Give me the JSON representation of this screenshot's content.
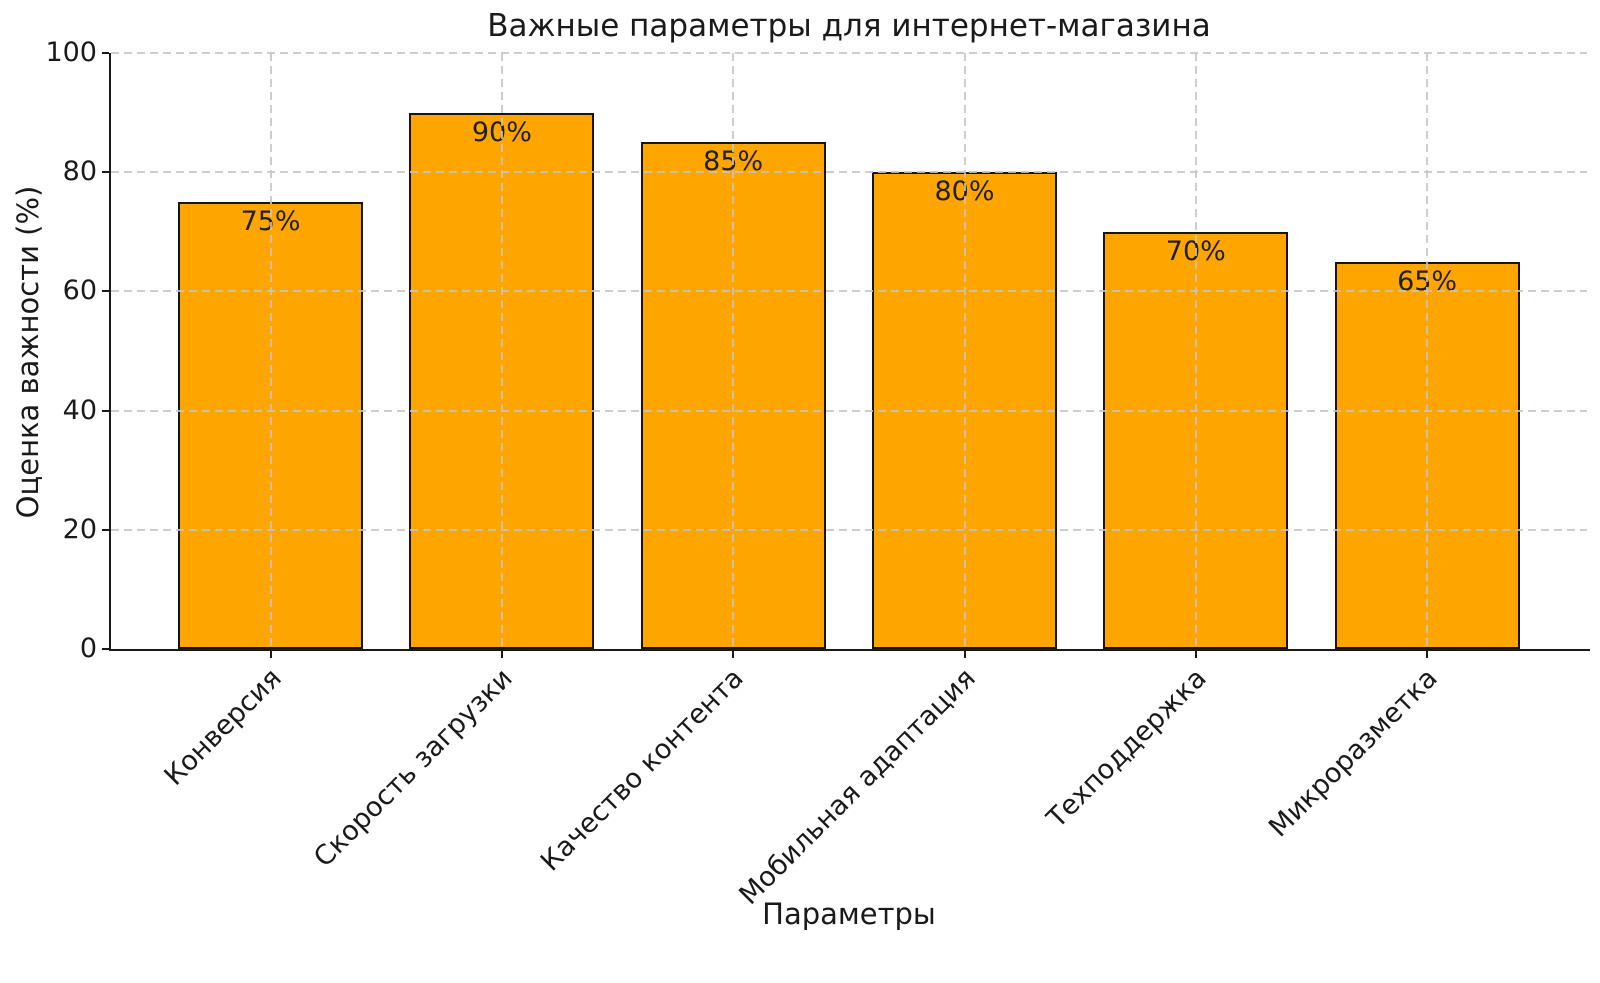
{
  "chart_data": {
    "type": "bar",
    "title": "Важные параметры для интернет-магазина",
    "xlabel": "Параметры",
    "ylabel": "Оценка важности (%)",
    "categories": [
      "Конверсия",
      "Скорость загрузки",
      "Качество контента",
      "Мобильная адаптация",
      "Техподдержка",
      "Микроразметка"
    ],
    "values": [
      75,
      90,
      85,
      80,
      70,
      65
    ],
    "value_labels": [
      "75%",
      "90%",
      "85%",
      "80%",
      "70%",
      "65%"
    ],
    "ylim": [
      0,
      100
    ],
    "yticks": [
      0,
      20,
      40,
      60,
      80,
      100
    ],
    "legend": "none",
    "grid": {
      "visible": true,
      "style": "dashed",
      "axes": "both",
      "drawn_over_bars": true
    },
    "colors": {
      "bar_fill": "#FFA500",
      "bar_edge": "#151515",
      "grid_line": "#c5c5c5",
      "axis_line": "#1a1a1a",
      "text": "#1a1a1a",
      "background": "#ffffff"
    },
    "xtick_rotation_deg": 45
  }
}
